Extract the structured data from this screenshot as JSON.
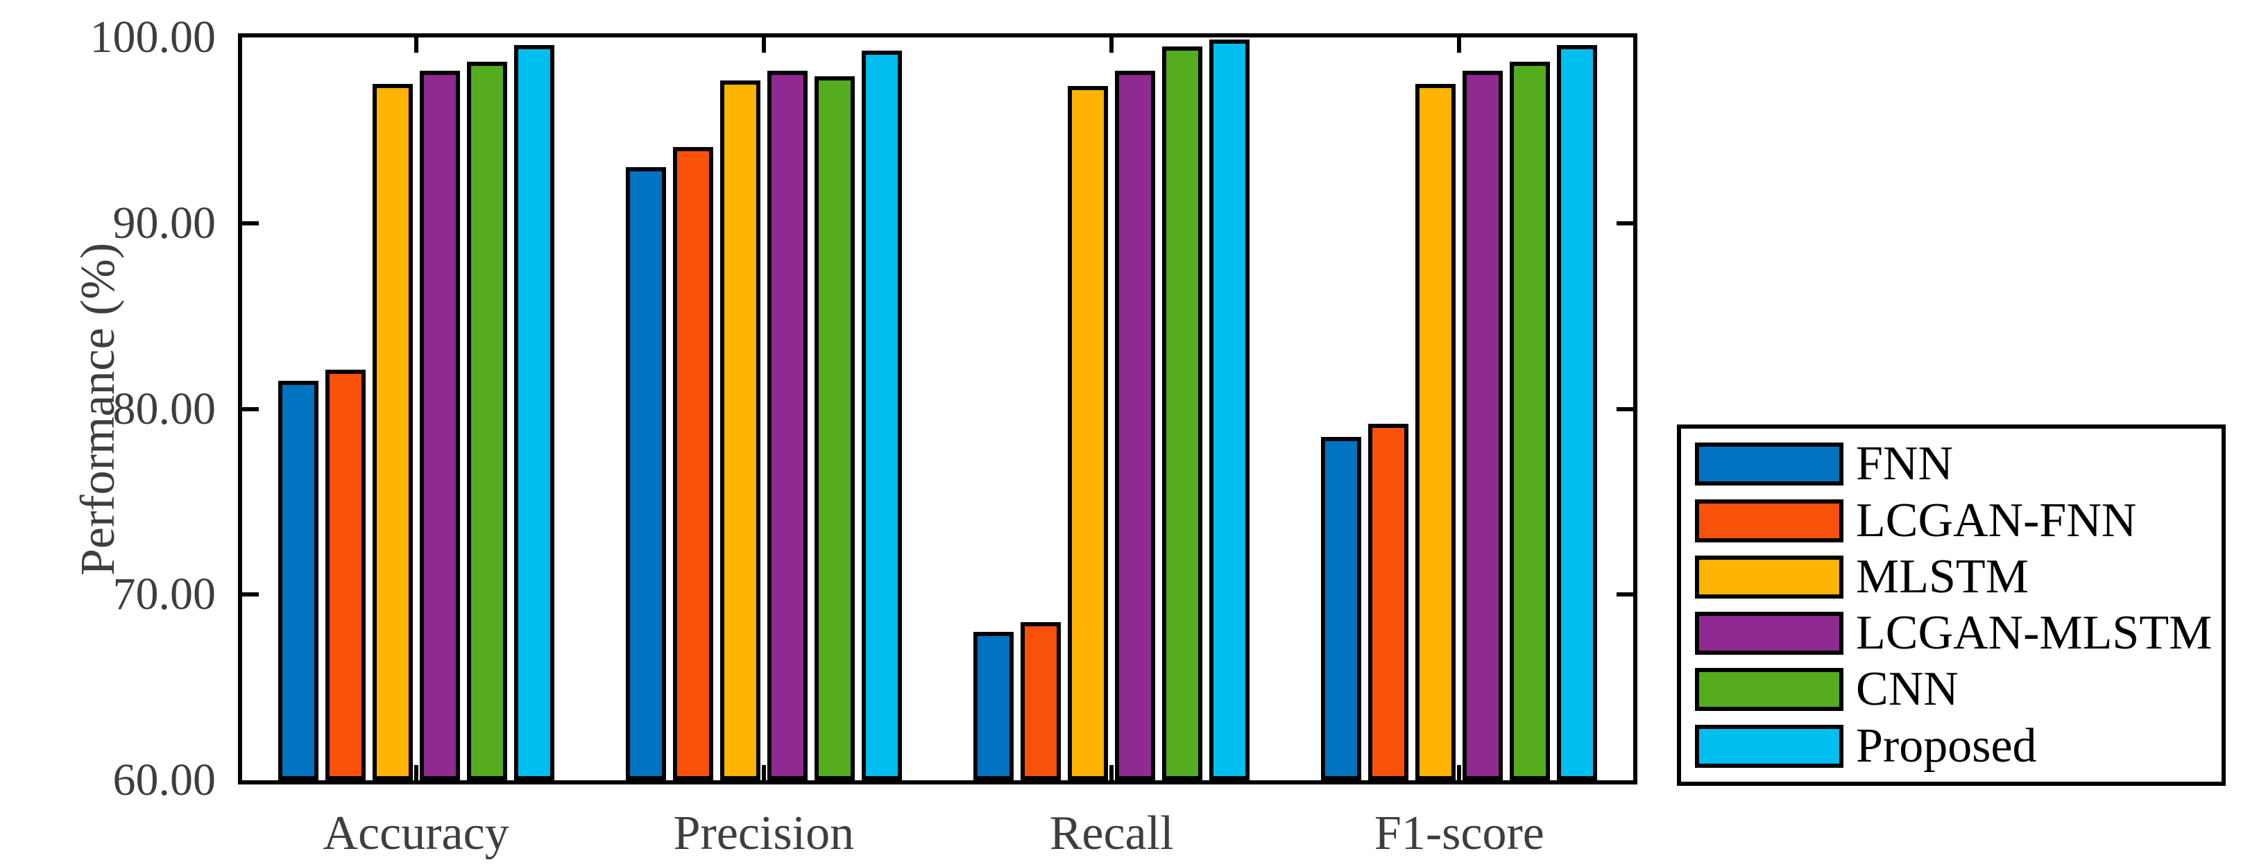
{
  "chart_data": {
    "type": "bar",
    "title": "",
    "xlabel": "",
    "ylabel": "Performance (%)",
    "ylim": [
      60,
      100
    ],
    "ytick_step": 10,
    "ytick_labels": [
      "100.00",
      "90.00",
      "80.00",
      "70.00",
      "60.00"
    ],
    "grid": false,
    "legend_position": "outside-right",
    "categories": [
      "Accuracy",
      "Precision",
      "Recall",
      "F1-score"
    ],
    "series": [
      {
        "name": "FNN",
        "color": "#0073C1",
        "values": [
          81.5,
          93.0,
          68.0,
          78.5
        ]
      },
      {
        "name": "LCGAN-FNN",
        "color": "#F8520A",
        "values": [
          82.1,
          94.1,
          68.5,
          79.2
        ]
      },
      {
        "name": "MLSTM",
        "color": "#FFB302",
        "values": [
          97.5,
          97.7,
          97.4,
          97.5
        ]
      },
      {
        "name": "LCGAN-MLSTM",
        "color": "#8F2A90",
        "values": [
          98.2,
          98.2,
          98.2,
          98.2
        ]
      },
      {
        "name": "CNN",
        "color": "#55AC1E",
        "values": [
          98.7,
          97.9,
          99.5,
          98.7
        ]
      },
      {
        "name": "Proposed",
        "color": "#00BEF0",
        "values": [
          99.6,
          99.3,
          99.9,
          99.6
        ]
      }
    ],
    "axis_color": "#000000",
    "tick_label_color": "#3e3e3e"
  }
}
